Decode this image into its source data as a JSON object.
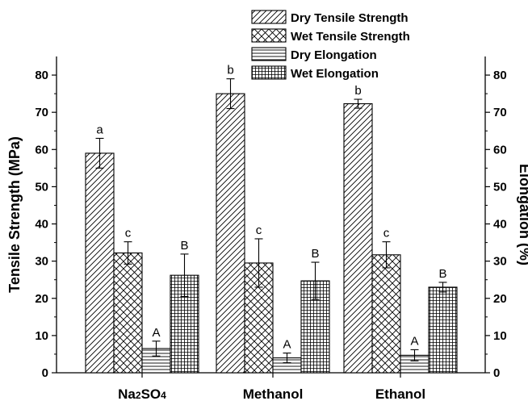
{
  "chart_data": {
    "type": "bar",
    "categories": [
      "Na2SO4",
      "Methanol",
      "Ethanol"
    ],
    "series": [
      {
        "name": "Dry Tensile Strength",
        "axis": "left",
        "pattern": "diagonal-hatch",
        "values": [
          59,
          75,
          72.3
        ],
        "errors": [
          4,
          4,
          1.2
        ],
        "labels": [
          "a",
          "b",
          "b"
        ]
      },
      {
        "name": "Wet Tensile Strength",
        "axis": "left",
        "pattern": "cross-hatch",
        "values": [
          32.2,
          29.5,
          31.7
        ],
        "errors": [
          3,
          6.5,
          3.5
        ],
        "labels": [
          "c",
          "c",
          "c"
        ]
      },
      {
        "name": "Dry Elongation",
        "axis": "right",
        "pattern": "horizontal-lines",
        "values": [
          6.5,
          4,
          4.7
        ],
        "errors": [
          2,
          1.3,
          1.5
        ],
        "labels": [
          "A",
          "A",
          "A"
        ]
      },
      {
        "name": "Wet Elongation",
        "axis": "right",
        "pattern": "grid",
        "values": [
          26.2,
          24.7,
          23
        ],
        "errors": [
          5.7,
          5,
          1.3
        ],
        "labels": [
          "B",
          "B",
          "B"
        ]
      }
    ],
    "ylabel": "Tensile Strength (MPa)",
    "y2label": "Elongation (%)",
    "ylim": [
      0,
      85
    ],
    "y2lim": [
      0,
      85
    ],
    "yticks": [
      0,
      10,
      20,
      30,
      40,
      50,
      60,
      70,
      80
    ],
    "y2ticks": [
      0,
      10,
      20,
      30,
      40,
      50,
      60,
      70,
      80
    ],
    "legend_position": "top-right",
    "grid": false
  }
}
